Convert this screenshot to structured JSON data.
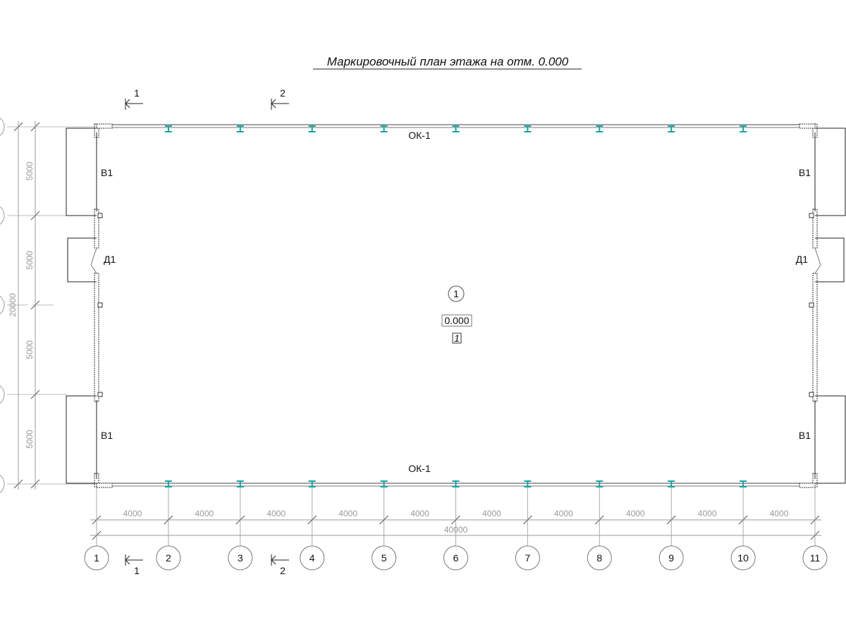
{
  "title": "Маркировочный план этажа на отм. 0.000",
  "axes_x": [
    "1",
    "2",
    "3",
    "4",
    "5",
    "6",
    "7",
    "8",
    "9",
    "10",
    "11"
  ],
  "spans_x": [
    "4000",
    "4000",
    "4000",
    "4000",
    "4000",
    "4000",
    "4000",
    "4000",
    "4000",
    "4000"
  ],
  "total_x": "40000",
  "spans_y": [
    "5000",
    "5000",
    "5000",
    "5000"
  ],
  "total_y": "20000",
  "openings": {
    "window": "В1",
    "door": "Д1",
    "glazing": "ОК-1"
  },
  "room": {
    "number": "1",
    "level": "0.000",
    "tag": "1"
  },
  "sections": [
    {
      "label": "1"
    },
    {
      "label": "2"
    }
  ],
  "colors": {
    "column": "#1aa3a3",
    "line": "#222222",
    "dim": "#9a9a9a"
  }
}
